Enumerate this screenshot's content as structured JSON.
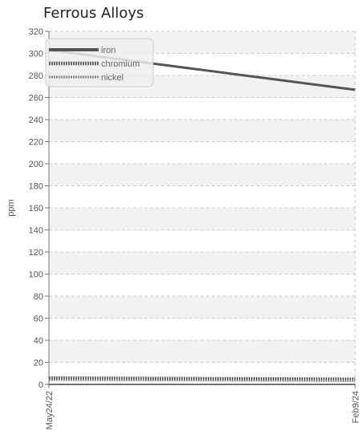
{
  "chart_data": {
    "type": "line",
    "title": "Ferrous Alloys",
    "ylabel": "ppm",
    "xlabel": "",
    "ylim": [
      0,
      320
    ],
    "yticks": [
      0,
      20,
      40,
      60,
      80,
      100,
      120,
      140,
      160,
      180,
      200,
      220,
      240,
      260,
      280,
      300,
      320
    ],
    "x": [
      "May24/22",
      "Feb9/24"
    ],
    "series": [
      {
        "name": "iron",
        "values": [
          303,
          267
        ]
      },
      {
        "name": "chromium",
        "values": [
          6,
          5
        ]
      },
      {
        "name": "nickel",
        "values": [
          4,
          3
        ]
      }
    ],
    "grid": true,
    "legend_position": "top-left",
    "colors": {
      "iron": "#555555",
      "chromium": "#6a6a6a",
      "nickel": "#888888",
      "grid": "#cccccc",
      "band": "#f2f2f2"
    }
  }
}
